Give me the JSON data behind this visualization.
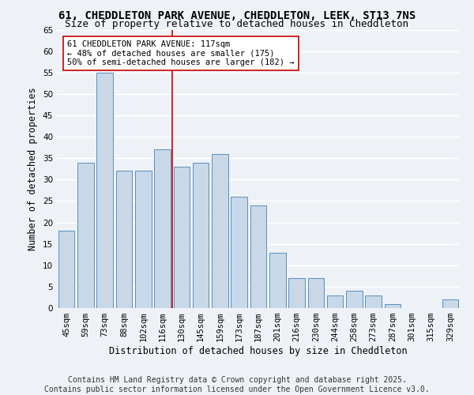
{
  "title1": "61, CHEDDLETON PARK AVENUE, CHEDDLETON, LEEK, ST13 7NS",
  "title2": "Size of property relative to detached houses in Cheddleton",
  "xlabel": "Distribution of detached houses by size in Cheddleton",
  "ylabel": "Number of detached properties",
  "categories": [
    "45sqm",
    "59sqm",
    "73sqm",
    "88sqm",
    "102sqm",
    "116sqm",
    "130sqm",
    "145sqm",
    "159sqm",
    "173sqm",
    "187sqm",
    "201sqm",
    "216sqm",
    "230sqm",
    "244sqm",
    "258sqm",
    "273sqm",
    "287sqm",
    "301sqm",
    "315sqm",
    "329sqm"
  ],
  "values": [
    18,
    34,
    55,
    32,
    32,
    37,
    33,
    34,
    36,
    26,
    24,
    13,
    7,
    7,
    3,
    4,
    3,
    1,
    0,
    0,
    2
  ],
  "bar_color": "#c8d8e8",
  "bar_edge_color": "#5a8fc0",
  "vline_x": 5.5,
  "vline_color": "#cc0000",
  "annotation_text": "61 CHEDDLETON PARK AVENUE: 117sqm\n← 48% of detached houses are smaller (175)\n50% of semi-detached houses are larger (182) →",
  "annotation_box_color": "#ffffff",
  "annotation_box_edge": "#cc0000",
  "ylim": [
    0,
    65
  ],
  "yticks": [
    0,
    5,
    10,
    15,
    20,
    25,
    30,
    35,
    40,
    45,
    50,
    55,
    60,
    65
  ],
  "footer1": "Contains HM Land Registry data © Crown copyright and database right 2025.",
  "footer2": "Contains public sector information licensed under the Open Government Licence v3.0.",
  "background_color": "#eef2f7",
  "grid_color": "#ffffff",
  "title_fontsize": 10,
  "subtitle_fontsize": 9,
  "axis_fontsize": 8.5,
  "tick_fontsize": 7.5,
  "annotation_fontsize": 7.5,
  "footer_fontsize": 7
}
